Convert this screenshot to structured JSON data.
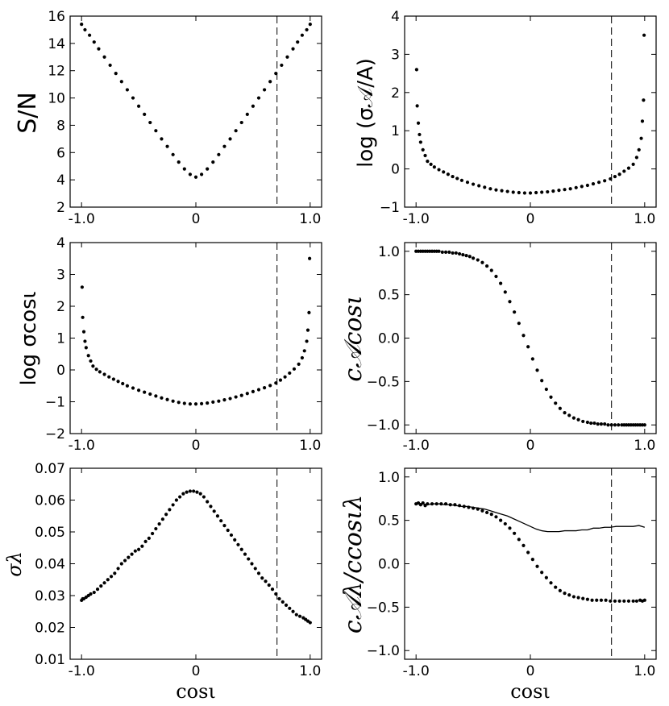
{
  "chart_data": [
    {
      "type": "scatter",
      "ylabel": "S/N",
      "xlabel": "",
      "xlim": [
        -1.1,
        1.1
      ],
      "ylim": [
        2,
        16
      ],
      "xticks": [
        -1,
        0,
        1
      ],
      "xtick_labels": [
        "-1.0",
        "0",
        "1.0"
      ],
      "yticks": [
        2,
        4,
        6,
        8,
        10,
        12,
        14,
        16
      ],
      "ytick_labels": [
        "2",
        "4",
        "6",
        "8",
        "10",
        "12",
        "14",
        "16"
      ],
      "vline_x": 0.71,
      "series": [
        {
          "name": "S/N",
          "kind": "points",
          "x": [
            -1.0,
            -0.97,
            -0.93,
            -0.89,
            -0.85,
            -0.8,
            -0.75,
            -0.7,
            -0.65,
            -0.6,
            -0.55,
            -0.5,
            -0.45,
            -0.4,
            -0.35,
            -0.3,
            -0.25,
            -0.2,
            -0.15,
            -0.1,
            -0.05,
            0.0,
            0.05,
            0.1,
            0.15,
            0.2,
            0.25,
            0.3,
            0.35,
            0.4,
            0.45,
            0.5,
            0.55,
            0.6,
            0.65,
            0.7,
            0.75,
            0.8,
            0.85,
            0.89,
            0.93,
            0.97,
            1.0
          ],
          "y": [
            15.4,
            15.0,
            14.6,
            14.1,
            13.6,
            13.0,
            12.4,
            11.8,
            11.2,
            10.6,
            10.0,
            9.4,
            8.8,
            8.2,
            7.6,
            7.0,
            6.45,
            5.85,
            5.3,
            4.8,
            4.4,
            4.2,
            4.4,
            4.8,
            5.3,
            5.85,
            6.45,
            7.0,
            7.6,
            8.2,
            8.8,
            9.4,
            10.0,
            10.6,
            11.2,
            11.8,
            12.4,
            13.0,
            13.6,
            14.1,
            14.6,
            15.0,
            15.4
          ]
        }
      ]
    },
    {
      "type": "scatter",
      "ylabel": "log (σ𝒜/A)",
      "xlabel": "",
      "xlim": [
        -1.1,
        1.1
      ],
      "ylim": [
        -1,
        4
      ],
      "xticks": [
        -1,
        0,
        1
      ],
      "xtick_labels": [
        "-1.0",
        "0",
        "1.0"
      ],
      "yticks": [
        -1,
        0,
        1,
        2,
        3,
        4
      ],
      "ytick_labels": [
        "−1",
        "0",
        "1",
        "2",
        "3",
        "4"
      ],
      "vline_x": 0.71,
      "series": [
        {
          "name": "log sigma_A/A",
          "kind": "points",
          "x": [
            -0.995,
            -0.99,
            -0.98,
            -0.97,
            -0.96,
            -0.94,
            -0.92,
            -0.9,
            -0.87,
            -0.84,
            -0.8,
            -0.76,
            -0.72,
            -0.68,
            -0.64,
            -0.6,
            -0.55,
            -0.5,
            -0.45,
            -0.4,
            -0.35,
            -0.3,
            -0.25,
            -0.2,
            -0.15,
            -0.1,
            -0.05,
            0.0,
            0.05,
            0.1,
            0.15,
            0.2,
            0.25,
            0.3,
            0.35,
            0.4,
            0.45,
            0.5,
            0.55,
            0.6,
            0.65,
            0.7,
            0.74,
            0.78,
            0.82,
            0.86,
            0.9,
            0.93,
            0.95,
            0.97,
            0.98,
            0.99,
            0.995
          ],
          "y": [
            2.6,
            1.65,
            1.2,
            0.9,
            0.7,
            0.5,
            0.35,
            0.2,
            0.12,
            0.05,
            -0.02,
            -0.08,
            -0.14,
            -0.2,
            -0.25,
            -0.3,
            -0.35,
            -0.4,
            -0.44,
            -0.48,
            -0.52,
            -0.55,
            -0.57,
            -0.59,
            -0.61,
            -0.62,
            -0.63,
            -0.63,
            -0.62,
            -0.61,
            -0.6,
            -0.58,
            -0.56,
            -0.54,
            -0.52,
            -0.49,
            -0.46,
            -0.43,
            -0.39,
            -0.35,
            -0.31,
            -0.26,
            -0.2,
            -0.14,
            -0.06,
            0.02,
            0.12,
            0.3,
            0.5,
            0.8,
            1.25,
            1.8,
            3.5
          ]
        }
      ]
    },
    {
      "type": "scatter",
      "ylabel": "log σcosι",
      "xlabel": "",
      "xlim": [
        -1.1,
        1.1
      ],
      "ylim": [
        -2,
        4
      ],
      "xticks": [
        -1,
        0,
        1
      ],
      "xtick_labels": [
        "-1.0",
        "0",
        "1.0"
      ],
      "yticks": [
        -2,
        -1,
        0,
        1,
        2,
        3,
        4
      ],
      "ytick_labels": [
        "−2",
        "−1",
        "0",
        "1",
        "2",
        "3",
        "4"
      ],
      "vline_x": 0.71,
      "series": [
        {
          "name": "log sigma_cos",
          "kind": "points",
          "x": [
            -0.995,
            -0.99,
            -0.98,
            -0.97,
            -0.96,
            -0.94,
            -0.92,
            -0.9,
            -0.87,
            -0.84,
            -0.8,
            -0.76,
            -0.72,
            -0.68,
            -0.64,
            -0.6,
            -0.55,
            -0.5,
            -0.45,
            -0.4,
            -0.35,
            -0.3,
            -0.25,
            -0.2,
            -0.15,
            -0.1,
            -0.05,
            0.0,
            0.05,
            0.1,
            0.15,
            0.2,
            0.25,
            0.3,
            0.35,
            0.4,
            0.45,
            0.5,
            0.55,
            0.6,
            0.65,
            0.7,
            0.74,
            0.78,
            0.82,
            0.86,
            0.9,
            0.93,
            0.95,
            0.97,
            0.98,
            0.99,
            0.995
          ],
          "y": [
            2.6,
            1.65,
            1.2,
            0.9,
            0.7,
            0.45,
            0.28,
            0.12,
            0.02,
            -0.06,
            -0.14,
            -0.22,
            -0.29,
            -0.36,
            -0.43,
            -0.5,
            -0.57,
            -0.64,
            -0.7,
            -0.76,
            -0.82,
            -0.88,
            -0.93,
            -0.98,
            -1.02,
            -1.05,
            -1.07,
            -1.07,
            -1.06,
            -1.04,
            -1.01,
            -0.98,
            -0.94,
            -0.9,
            -0.85,
            -0.8,
            -0.74,
            -0.68,
            -0.62,
            -0.56,
            -0.49,
            -0.41,
            -0.32,
            -0.22,
            -0.1,
            0.03,
            0.18,
            0.38,
            0.6,
            0.9,
            1.25,
            1.8,
            3.5
          ]
        }
      ]
    },
    {
      "type": "scatter",
      "ylabel": "c𝒜cosι",
      "xlabel": "",
      "xlim": [
        -1.1,
        1.1
      ],
      "ylim": [
        -1.1,
        1.1
      ],
      "xticks": [
        -1,
        0,
        1
      ],
      "xtick_labels": [
        "-1.0",
        "0",
        "1.0"
      ],
      "yticks": [
        -1.0,
        -0.5,
        0.0,
        0.5,
        1.0
      ],
      "ytick_labels": [
        "−1.0",
        "−0.5",
        "0.0",
        "0.5",
        "1.0"
      ],
      "vline_x": 0.71,
      "series": [
        {
          "name": "c_A_cos",
          "kind": "points",
          "x": [
            -1.0,
            -0.98,
            -0.96,
            -0.94,
            -0.92,
            -0.9,
            -0.88,
            -0.86,
            -0.84,
            -0.82,
            -0.8,
            -0.77,
            -0.74,
            -0.71,
            -0.68,
            -0.65,
            -0.62,
            -0.59,
            -0.56,
            -0.53,
            -0.5,
            -0.46,
            -0.42,
            -0.38,
            -0.34,
            -0.3,
            -0.26,
            -0.22,
            -0.18,
            -0.14,
            -0.1,
            -0.06,
            -0.02,
            0.02,
            0.06,
            0.1,
            0.14,
            0.18,
            0.22,
            0.26,
            0.3,
            0.34,
            0.38,
            0.42,
            0.46,
            0.5,
            0.53,
            0.56,
            0.59,
            0.62,
            0.65,
            0.68,
            0.71,
            0.74,
            0.77,
            0.8,
            0.82,
            0.84,
            0.86,
            0.88,
            0.9,
            0.92,
            0.94,
            0.96,
            0.98,
            1.0
          ],
          "y": [
            1.0,
            1.0,
            1.0,
            1.0,
            1.0,
            1.0,
            1.0,
            1.0,
            1.0,
            1.0,
            1.0,
            0.99,
            0.99,
            0.99,
            0.98,
            0.98,
            0.97,
            0.96,
            0.95,
            0.94,
            0.92,
            0.9,
            0.87,
            0.83,
            0.78,
            0.71,
            0.63,
            0.53,
            0.42,
            0.3,
            0.17,
            0.03,
            -0.1,
            -0.24,
            -0.37,
            -0.49,
            -0.59,
            -0.68,
            -0.75,
            -0.81,
            -0.86,
            -0.89,
            -0.92,
            -0.94,
            -0.96,
            -0.97,
            -0.98,
            -0.98,
            -0.99,
            -0.99,
            -0.99,
            -1.0,
            -1.0,
            -1.0,
            -1.0,
            -1.0,
            -1.0,
            -1.0,
            -1.0,
            -1.0,
            -1.0,
            -1.0,
            -1.0,
            -1.0,
            -1.0,
            -1.0
          ]
        }
      ]
    },
    {
      "type": "scatter",
      "ylabel": "σλ",
      "xlabel": "cosι",
      "xlim": [
        -1.1,
        1.1
      ],
      "ylim": [
        0.01,
        0.07
      ],
      "xticks": [
        -1,
        0,
        1
      ],
      "xtick_labels": [
        "-1.0",
        "0",
        "1.0"
      ],
      "yticks": [
        0.01,
        0.02,
        0.03,
        0.04,
        0.05,
        0.06,
        0.07
      ],
      "ytick_labels": [
        "0.01",
        "0.02",
        "0.03",
        "0.04",
        "0.05",
        "0.06",
        "0.07"
      ],
      "vline_x": 0.71,
      "series": [
        {
          "name": "sigma_lambda",
          "kind": "points",
          "x": [
            -1.0,
            -0.99,
            -0.98,
            -0.96,
            -0.94,
            -0.92,
            -0.89,
            -0.86,
            -0.83,
            -0.8,
            -0.77,
            -0.74,
            -0.71,
            -0.68,
            -0.65,
            -0.62,
            -0.59,
            -0.56,
            -0.53,
            -0.5,
            -0.47,
            -0.44,
            -0.41,
            -0.38,
            -0.35,
            -0.32,
            -0.29,
            -0.26,
            -0.23,
            -0.2,
            -0.17,
            -0.14,
            -0.11,
            -0.08,
            -0.05,
            -0.02,
            0.01,
            0.04,
            0.07,
            0.1,
            0.13,
            0.16,
            0.19,
            0.22,
            0.25,
            0.28,
            0.31,
            0.34,
            0.37,
            0.4,
            0.43,
            0.46,
            0.49,
            0.52,
            0.55,
            0.58,
            0.61,
            0.64,
            0.67,
            0.7,
            0.73,
            0.76,
            0.79,
            0.82,
            0.85,
            0.88,
            0.91,
            0.94,
            0.96,
            0.98,
            1.0
          ],
          "y": [
            0.0285,
            0.029,
            0.029,
            0.0295,
            0.03,
            0.0305,
            0.031,
            0.032,
            0.033,
            0.034,
            0.035,
            0.036,
            0.037,
            0.0385,
            0.04,
            0.041,
            0.042,
            0.043,
            0.044,
            0.0445,
            0.0455,
            0.047,
            0.048,
            0.0495,
            0.051,
            0.0525,
            0.054,
            0.0555,
            0.057,
            0.0585,
            0.06,
            0.061,
            0.062,
            0.0625,
            0.0628,
            0.0628,
            0.0625,
            0.062,
            0.061,
            0.0595,
            0.058,
            0.0565,
            0.055,
            0.0535,
            0.052,
            0.0505,
            0.049,
            0.0475,
            0.046,
            0.0445,
            0.043,
            0.0415,
            0.04,
            0.0385,
            0.037,
            0.0355,
            0.0345,
            0.0333,
            0.032,
            0.0305,
            0.029,
            0.028,
            0.027,
            0.026,
            0.025,
            0.024,
            0.0235,
            0.023,
            0.0225,
            0.022,
            0.0215
          ]
        }
      ]
    },
    {
      "type": "scatter",
      "ylabel": "c𝒜λ/ccosιλ",
      "xlabel": "cosι",
      "xlim": [
        -1.1,
        1.1
      ],
      "ylim": [
        -1.1,
        1.1
      ],
      "xticks": [
        -1,
        0,
        1
      ],
      "xtick_labels": [
        "-1.0",
        "0",
        "1.0"
      ],
      "yticks": [
        -1.0,
        -0.5,
        0.0,
        0.5,
        1.0
      ],
      "ytick_labels": [
        "−1.0",
        "−0.5",
        "0.0",
        "0.5",
        "1.0"
      ],
      "vline_x": 0.71,
      "series": [
        {
          "name": "c_A_lambda",
          "kind": "line",
          "x": [
            -1.0,
            -0.95,
            -0.9,
            -0.85,
            -0.8,
            -0.75,
            -0.7,
            -0.65,
            -0.6,
            -0.55,
            -0.5,
            -0.45,
            -0.4,
            -0.35,
            -0.3,
            -0.25,
            -0.2,
            -0.15,
            -0.1,
            -0.05,
            0.0,
            0.05,
            0.1,
            0.15,
            0.2,
            0.25,
            0.3,
            0.35,
            0.4,
            0.45,
            0.5,
            0.55,
            0.6,
            0.65,
            0.7,
            0.75,
            0.8,
            0.85,
            0.9,
            0.95,
            1.0
          ],
          "y": [
            0.7,
            0.69,
            0.68,
            0.69,
            0.69,
            0.68,
            0.68,
            0.67,
            0.66,
            0.66,
            0.65,
            0.64,
            0.63,
            0.61,
            0.59,
            0.57,
            0.55,
            0.52,
            0.49,
            0.46,
            0.43,
            0.4,
            0.38,
            0.37,
            0.37,
            0.37,
            0.38,
            0.38,
            0.38,
            0.39,
            0.39,
            0.41,
            0.41,
            0.42,
            0.42,
            0.43,
            0.43,
            0.43,
            0.43,
            0.44,
            0.42
          ]
        },
        {
          "name": "c_cos_lambda",
          "kind": "points",
          "x": [
            -1.0,
            -0.98,
            -0.96,
            -0.94,
            -0.92,
            -0.9,
            -0.86,
            -0.82,
            -0.78,
            -0.74,
            -0.7,
            -0.66,
            -0.62,
            -0.58,
            -0.54,
            -0.5,
            -0.46,
            -0.42,
            -0.38,
            -0.34,
            -0.3,
            -0.26,
            -0.22,
            -0.18,
            -0.14,
            -0.1,
            -0.06,
            -0.02,
            0.02,
            0.06,
            0.1,
            0.14,
            0.18,
            0.22,
            0.26,
            0.3,
            0.34,
            0.38,
            0.42,
            0.46,
            0.5,
            0.54,
            0.58,
            0.62,
            0.66,
            0.7,
            0.74,
            0.78,
            0.82,
            0.86,
            0.9,
            0.93,
            0.96,
            0.98,
            1.0
          ],
          "y": [
            0.69,
            0.7,
            0.68,
            0.7,
            0.67,
            0.69,
            0.69,
            0.69,
            0.69,
            0.69,
            0.68,
            0.68,
            0.67,
            0.66,
            0.65,
            0.64,
            0.63,
            0.61,
            0.59,
            0.57,
            0.54,
            0.5,
            0.46,
            0.41,
            0.35,
            0.28,
            0.21,
            0.13,
            0.05,
            -0.03,
            -0.1,
            -0.16,
            -0.22,
            -0.27,
            -0.31,
            -0.34,
            -0.36,
            -0.38,
            -0.39,
            -0.4,
            -0.41,
            -0.42,
            -0.42,
            -0.42,
            -0.42,
            -0.43,
            -0.43,
            -0.43,
            -0.43,
            -0.43,
            -0.43,
            -0.43,
            -0.42,
            -0.43,
            -0.42
          ]
        }
      ]
    }
  ]
}
